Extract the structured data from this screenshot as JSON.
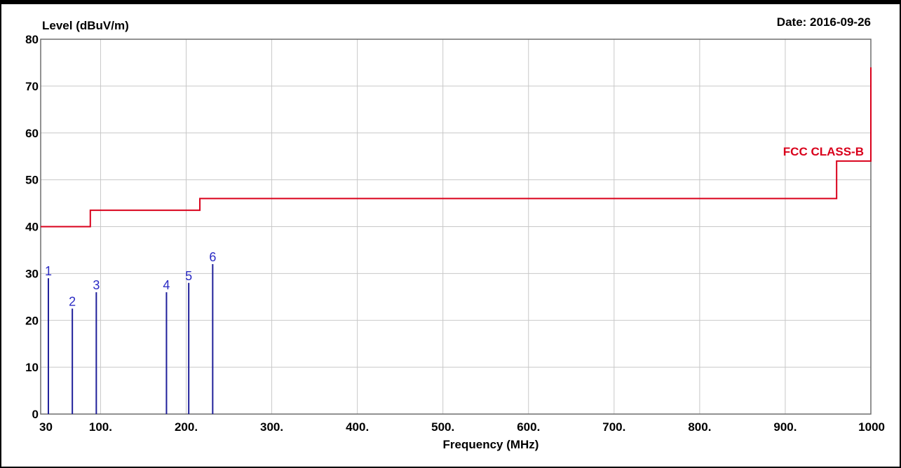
{
  "chart_data": {
    "type": "line",
    "ylabel": "Level (dBuV/m)",
    "xlabel": "Frequency (MHz)",
    "date_text": "Date: 2016-09-26",
    "xlim": [
      30,
      1000
    ],
    "ylim": [
      0,
      80
    ],
    "grid": true,
    "x_ticks": [
      {
        "value": 30,
        "label": "30"
      },
      {
        "value": 100,
        "label": "100."
      },
      {
        "value": 200,
        "label": "200."
      },
      {
        "value": 300,
        "label": "300."
      },
      {
        "value": 400,
        "label": "400."
      },
      {
        "value": 500,
        "label": "500."
      },
      {
        "value": 600,
        "label": "600."
      },
      {
        "value": 700,
        "label": "700."
      },
      {
        "value": 800,
        "label": "800."
      },
      {
        "value": 900,
        "label": "900."
      },
      {
        "value": 1000,
        "label": "1000"
      }
    ],
    "y_ticks": [
      {
        "value": 0,
        "label": "0"
      },
      {
        "value": 10,
        "label": "10"
      },
      {
        "value": 20,
        "label": "20"
      },
      {
        "value": 30,
        "label": "30"
      },
      {
        "value": 40,
        "label": "40"
      },
      {
        "value": 50,
        "label": "50"
      },
      {
        "value": 60,
        "label": "60"
      },
      {
        "value": 70,
        "label": "70"
      },
      {
        "value": 80,
        "label": "80"
      }
    ],
    "limit_line": {
      "name": "FCC CLASS-B",
      "color": "#d9001b",
      "points": [
        [
          30,
          40.0
        ],
        [
          88,
          40.0
        ],
        [
          88,
          43.5
        ],
        [
          216,
          43.5
        ],
        [
          216,
          46.0
        ],
        [
          960,
          46.0
        ],
        [
          960,
          54.0
        ],
        [
          1000,
          54.0
        ],
        [
          1000,
          74.0
        ]
      ]
    },
    "peaks": {
      "color": "#1f1f9a",
      "label_color": "#2b2bc4",
      "points": [
        {
          "label": "1",
          "freq": 39,
          "level": 29.0
        },
        {
          "label": "2",
          "freq": 67,
          "level": 22.5
        },
        {
          "label": "3",
          "freq": 95,
          "level": 26.0
        },
        {
          "label": "4",
          "freq": 177,
          "level": 26.0
        },
        {
          "label": "5",
          "freq": 203,
          "level": 28.0
        },
        {
          "label": "6",
          "freq": 231,
          "level": 32.0
        }
      ]
    }
  }
}
